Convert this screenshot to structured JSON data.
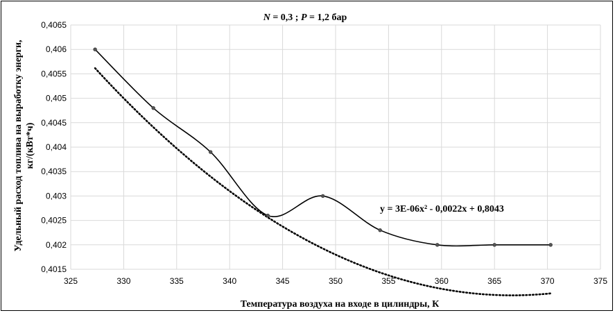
{
  "chart_data": {
    "type": "line",
    "title_parts": {
      "n_var": "N",
      "n_rest": " = 0,3 ; ",
      "p_var": "P",
      "p_rest": " = 1,2 бар"
    },
    "xlabel": "Температура воздуха на входе в цилиндры, К",
    "ylabel_line1": "Удельный расход топлива на выработку энерги,",
    "ylabel_line2": "кг/(кВт*ч)",
    "xlim": [
      325,
      375
    ],
    "ylim": [
      0.4015,
      0.4065
    ],
    "x_ticks": [
      325,
      330,
      335,
      340,
      345,
      350,
      355,
      360,
      365,
      370,
      375
    ],
    "x_tick_labels": [
      "325",
      "330",
      "335",
      "340",
      "345",
      "350",
      "355",
      "360",
      "365",
      "370",
      "375"
    ],
    "y_ticks": [
      0.4015,
      0.402,
      0.4025,
      0.403,
      0.4035,
      0.404,
      0.4045,
      0.405,
      0.4055,
      0.406,
      0.4065
    ],
    "y_tick_labels": [
      "0,4015",
      "0,402",
      "0,4025",
      "0,403",
      "0,4035",
      "0,404",
      "0,4045",
      "0,405",
      "0,4055",
      "0,406",
      "0,4065"
    ],
    "grid": true,
    "series": [
      {
        "style": "solid-smoothed",
        "color": "#000000",
        "x": [
          327.3,
          332.8,
          338.2,
          343.6,
          348.8,
          354.2,
          359.6,
          365.0,
          370.3
        ],
        "y": [
          0.406,
          0.4048,
          0.4039,
          0.4026,
          0.403,
          0.4023,
          0.402,
          0.402,
          0.402
        ]
      },
      {
        "style": "dotted-trendline",
        "color": "#000000",
        "x_range": [
          327.3,
          370.3
        ],
        "coefficients": {
          "a": 3e-06,
          "b": -0.0022,
          "c": 0.8043
        }
      }
    ],
    "annotation": "y = 3E-06x² - 0,0022x + 0,8043"
  }
}
